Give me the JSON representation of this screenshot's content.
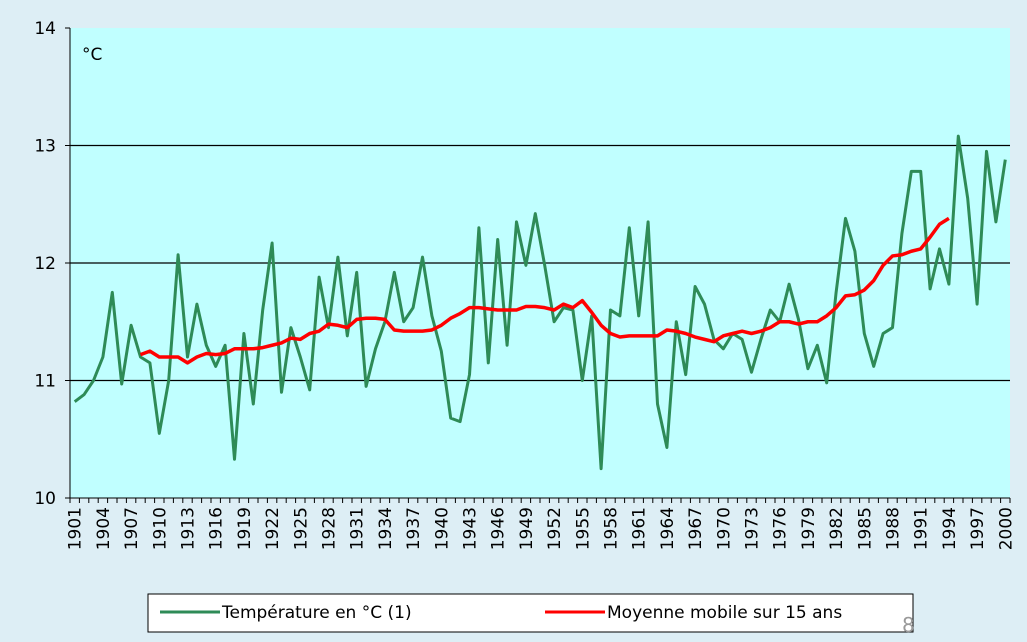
{
  "chart_data": {
    "type": "line",
    "annotations": [
      "°C",
      "8"
    ],
    "categories": [
      "1901",
      null,
      null,
      "1904",
      null,
      null,
      "1907",
      null,
      null,
      "1910",
      null,
      null,
      "1913",
      null,
      null,
      "1916",
      null,
      null,
      "1919",
      null,
      null,
      "1922",
      null,
      null,
      "1925",
      null,
      null,
      "1928",
      null,
      null,
      "1931",
      null,
      null,
      "1934",
      null,
      null,
      "1937",
      null,
      null,
      "1940",
      null,
      null,
      "1943",
      null,
      null,
      "1946",
      null,
      null,
      "1949",
      null,
      null,
      "1952",
      null,
      null,
      "1955",
      null,
      null,
      "1958",
      null,
      null,
      "1961",
      null,
      null,
      "1964",
      null,
      null,
      "1967",
      null,
      null,
      "1970",
      null,
      null,
      "1973",
      null,
      null,
      "1976",
      null,
      null,
      "1979",
      null,
      null,
      "1982",
      null,
      null,
      "1985",
      null,
      null,
      "1988",
      null,
      null,
      "1991",
      null,
      null,
      "1994",
      null,
      null,
      "1997",
      null,
      null,
      "2000"
    ],
    "series": [
      {
        "name": "Température en °C (1)",
        "color": "#2e8b57",
        "values": [
          10.82,
          10.88,
          11.0,
          11.2,
          11.75,
          10.97,
          11.47,
          11.2,
          11.15,
          10.55,
          11.0,
          12.07,
          11.2,
          11.65,
          11.3,
          11.12,
          11.3,
          10.33,
          11.4,
          10.8,
          11.6,
          12.17,
          10.9,
          11.45,
          11.2,
          10.92,
          11.88,
          11.45,
          12.05,
          11.38,
          11.92,
          10.95,
          11.27,
          11.5,
          11.92,
          11.5,
          11.62,
          12.05,
          11.55,
          11.25,
          10.68,
          10.65,
          11.05,
          12.3,
          11.15,
          12.2,
          11.3,
          12.35,
          11.98,
          12.42,
          11.98,
          11.5,
          11.62,
          11.6,
          11.0,
          11.55,
          10.25,
          11.6,
          11.55,
          12.3,
          11.55,
          12.35,
          10.8,
          10.43,
          11.5,
          11.05,
          11.8,
          11.65,
          11.35,
          11.27,
          11.4,
          11.35,
          11.07,
          11.35,
          11.6,
          11.5,
          11.82,
          11.52,
          11.1,
          11.3,
          10.98,
          11.75,
          12.38,
          12.1,
          11.4,
          11.12,
          11.4,
          11.45,
          12.25,
          12.78,
          12.78,
          11.78,
          12.12,
          11.82,
          13.08,
          12.55,
          11.65,
          12.95,
          12.35,
          12.88
        ]
      },
      {
        "name": "Moyenne mobile sur 15 ans",
        "color": "#ff0000",
        "values": [
          null,
          null,
          null,
          null,
          null,
          null,
          null,
          11.22,
          11.25,
          11.2,
          11.2,
          11.2,
          11.15,
          11.2,
          11.23,
          11.22,
          11.23,
          11.27,
          11.27,
          11.27,
          11.28,
          11.3,
          11.32,
          11.36,
          11.35,
          11.4,
          11.42,
          11.48,
          11.47,
          11.45,
          11.52,
          11.53,
          11.53,
          11.52,
          11.43,
          11.42,
          11.42,
          11.42,
          11.43,
          11.47,
          11.53,
          11.57,
          11.62,
          11.62,
          11.61,
          11.6,
          11.6,
          11.6,
          11.63,
          11.63,
          11.62,
          11.6,
          11.65,
          11.62,
          11.68,
          11.58,
          11.47,
          11.4,
          11.37,
          11.38,
          11.38,
          11.38,
          11.38,
          11.43,
          11.42,
          11.4,
          11.37,
          11.35,
          11.33,
          11.38,
          11.4,
          11.42,
          11.4,
          11.42,
          11.45,
          11.5,
          11.5,
          11.48,
          11.5,
          11.5,
          11.55,
          11.62,
          11.72,
          11.73,
          11.77,
          11.85,
          11.98,
          12.06,
          12.07,
          12.1,
          12.12,
          12.22,
          12.33,
          12.38,
          null,
          null,
          null,
          null,
          null,
          null
        ]
      }
    ],
    "ylim": [
      10,
      14
    ],
    "yticks": [
      10,
      11,
      12,
      13,
      14
    ],
    "grid": true,
    "legend": "bottom",
    "plot_background": "#c0ffff"
  }
}
